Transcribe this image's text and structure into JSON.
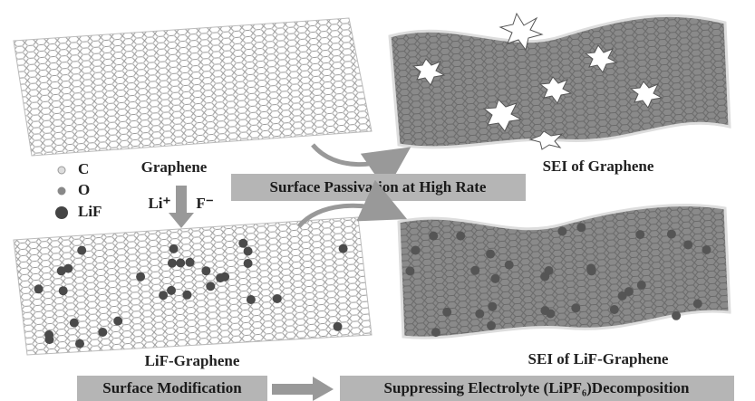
{
  "legend": {
    "c": "C",
    "o": "O",
    "lif": "LiF"
  },
  "top": {
    "left_label": "Graphene",
    "right_label": "SEI of Graphene",
    "process": "Surface Passivation at High Rate"
  },
  "middle": {
    "ion1": "Li⁺",
    "ion2": "F⁻"
  },
  "bottom": {
    "left_label": "LiF-Graphene",
    "right_label": "SEI of LiF-Graphene",
    "step1": "Surface Modification",
    "step2": "Suppressing Electrolyte (LiPF₆)Decomposition"
  }
}
